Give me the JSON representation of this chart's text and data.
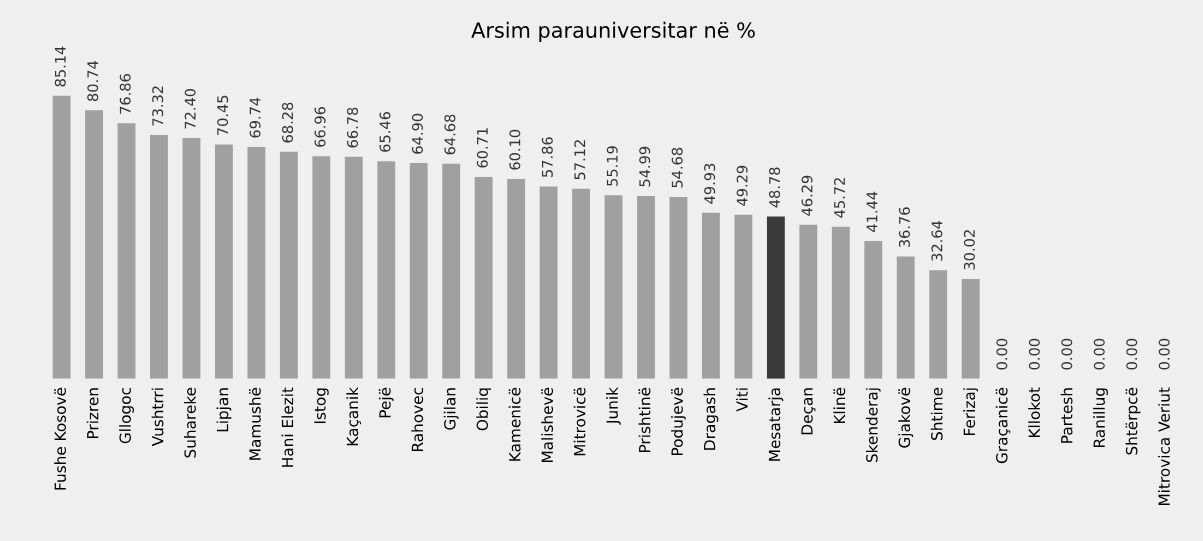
{
  "chart_data": {
    "type": "bar",
    "title": "Arsim parauniversitar në %",
    "categories": [
      "Fushe Kosovë",
      "Prizren",
      "Gllogoc",
      "Vushtrri",
      "Suhareke",
      "Lipjan",
      "Mamushë",
      "Hani Elezit",
      "Istog",
      "Kaçanik",
      "Pejë",
      "Rahovec",
      "Gjilan",
      "Obiliq",
      "Kamenicë",
      "Malishevë",
      "Mitrovicë",
      "Junik",
      "Prishtinë",
      "Podujevë",
      "Dragash",
      "Viti",
      "Mesatarja",
      "Deçan",
      "Klinë",
      "Skenderaj",
      "Gjakovë",
      "Shtime",
      "Ferizaj",
      "Graçanicë",
      "Kllokot",
      "Partesh",
      "Ranillug",
      "Shtërpcë",
      "Mitrovica Veriut"
    ],
    "values": [
      85.14,
      80.74,
      76.86,
      73.32,
      72.4,
      70.45,
      69.74,
      68.28,
      66.96,
      66.78,
      65.46,
      64.9,
      64.68,
      60.71,
      60.1,
      57.86,
      57.12,
      55.19,
      54.99,
      54.68,
      49.93,
      49.29,
      48.78,
      46.29,
      45.72,
      41.44,
      36.76,
      32.64,
      30.02,
      0.0,
      0.0,
      0.0,
      0.0,
      0.0,
      0.0
    ],
    "value_labels": [
      "85.14",
      "80.74",
      "76.86",
      "73.32",
      "72.40",
      "70.45",
      "69.74",
      "68.28",
      "66.96",
      "66.78",
      "65.46",
      "64.90",
      "64.68",
      "60.71",
      "60.10",
      "57.86",
      "57.12",
      "55.19",
      "54.99",
      "54.68",
      "49.93",
      "49.29",
      "48.78",
      "46.29",
      "45.72",
      "41.44",
      "36.76",
      "32.64",
      "30.02",
      "0.00",
      "0.00",
      "0.00",
      "0.00",
      "0.00",
      "0.00"
    ],
    "colors": [
      "#a0a0a0",
      "#a0a0a0",
      "#a0a0a0",
      "#a0a0a0",
      "#a0a0a0",
      "#a0a0a0",
      "#a0a0a0",
      "#a0a0a0",
      "#a0a0a0",
      "#a0a0a0",
      "#a0a0a0",
      "#a0a0a0",
      "#a0a0a0",
      "#a0a0a0",
      "#a0a0a0",
      "#a0a0a0",
      "#a0a0a0",
      "#a0a0a0",
      "#a0a0a0",
      "#a0a0a0",
      "#a0a0a0",
      "#a0a0a0",
      "#3a3a3a",
      "#a0a0a0",
      "#a0a0a0",
      "#a0a0a0",
      "#a0a0a0",
      "#a0a0a0",
      "#a0a0a0",
      "#a0a0a0",
      "#a0a0a0",
      "#a0a0a0",
      "#a0a0a0",
      "#a0a0a0",
      "#a0a0a0"
    ],
    "grid": false,
    "legend": false
  }
}
